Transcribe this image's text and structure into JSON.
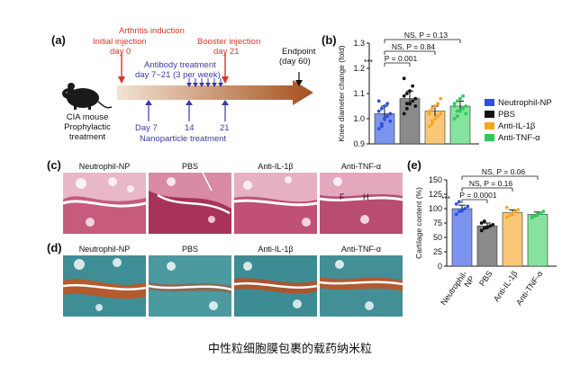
{
  "caption": "中性粒细胞膜包裹的载药纳米粒",
  "panels": {
    "a": {
      "letter": "(a)",
      "arthritis_induction": "Arthritis induction",
      "initial_injection": "Initial injection",
      "day0": "day 0",
      "booster_injection": "Booster injection",
      "day21": "day 21",
      "endpoint": "Endpoint",
      "endpoint_day": "(day 60)",
      "antibody_treatment": "Antibody treatment",
      "antibody_schedule": "day 7~21 (3 per week)",
      "mouse_lines": [
        "CIA mouse",
        "Prophylactic",
        "treatment"
      ],
      "day7": "Day 7",
      "day14": "14",
      "day21b": "21",
      "nanoparticle_treatment": "Nanoparticle treatment",
      "colors": {
        "red": "#d9342b",
        "blue": "#3a3aa5",
        "arrow_start": "#f3e3d3",
        "arrow_end": "#a5501e"
      }
    },
    "b": {
      "letter": "(b)",
      "sig_lines": [
        "NS, P = 0.13",
        "NS, P = 0.84",
        "P = 0.001"
      ],
      "stars": "***"
    },
    "c": {
      "letter": "(c)",
      "labels": [
        "Neutrophil-NP",
        "PBS",
        "Anti-IL-1β",
        "Anti-TNF-α"
      ],
      "annotations": [
        "F",
        "H"
      ]
    },
    "d": {
      "letter": "(d)",
      "labels": [
        "Neutrophil-NP",
        "PBS",
        "Anti-IL-1β",
        "Anti-TNF-α"
      ]
    },
    "e": {
      "letter": "(e)",
      "sig_lines": [
        "NS, P = 0.06",
        "NS, P = 0.16",
        "P = 0.0001"
      ],
      "stars": "***"
    }
  },
  "legend": [
    {
      "label": "Neutrophil-NP",
      "color": "#2f4fe0"
    },
    {
      "label": "PBS",
      "color": "#111111"
    },
    {
      "label": "Anti-IL-1β",
      "color": "#f5a623"
    },
    {
      "label": "Anti-TNF-α",
      "color": "#34c759"
    }
  ],
  "chart_data": [
    {
      "type": "bar",
      "panel": "b",
      "ylabel": "Knee diameter change (fold)",
      "ylim": [
        0.9,
        1.3
      ],
      "yticks": [
        "0.9",
        "1.0",
        "1.1",
        "1.2",
        "1.3"
      ],
      "categories": [
        "Neutrophil-NP",
        "PBS",
        "Anti-IL-1β",
        "Anti-TNF-α"
      ],
      "values": [
        1.02,
        1.08,
        1.03,
        1.05
      ],
      "errors": [
        0.03,
        0.03,
        0.02,
        0.02
      ],
      "colors": [
        "#7d93f0",
        "#8a8a8a",
        "#f8c877",
        "#86e39d"
      ],
      "points": [
        [
          0.96,
          0.98,
          1.0,
          1.01,
          1.02,
          1.03,
          1.04,
          1.05,
          1.06,
          0.99,
          1.07,
          0.97
        ],
        [
          1.02,
          1.04,
          1.06,
          1.07,
          1.08,
          1.09,
          1.1,
          1.11,
          1.13,
          1.05,
          1.16,
          1.06
        ],
        [
          0.97,
          0.99,
          1.0,
          1.01,
          1.02,
          1.03,
          1.04,
          1.05,
          1.06,
          1.08,
          1.02,
          0.98
        ],
        [
          1.0,
          1.01,
          1.03,
          1.04,
          1.05,
          1.06,
          1.07,
          1.08,
          1.09,
          1.02,
          1.05,
          1.03
        ]
      ]
    },
    {
      "type": "bar",
      "panel": "e",
      "ylabel": "Cartilage content (%)",
      "ylim": [
        0,
        150
      ],
      "yticks": [
        "0",
        "25",
        "50",
        "75",
        "100",
        "125",
        "150"
      ],
      "categories": [
        "Neutrophil-NP",
        "PBS",
        "Anti-IL-1β",
        "Anti-TNF-α"
      ],
      "tick_labels": [
        "Neutrophil-\nNP",
        "PBS",
        "Anti-IL-1β",
        "Anti-TNF-α"
      ],
      "values": [
        100,
        70,
        93,
        90
      ],
      "errors": [
        6,
        5,
        5,
        4
      ],
      "colors": [
        "#7d93f0",
        "#8a8a8a",
        "#f8c877",
        "#86e39d"
      ],
      "points": [
        [
          90,
          95,
          98,
          100,
          104,
          108,
          112,
          96
        ],
        [
          62,
          66,
          68,
          70,
          72,
          75,
          78,
          67
        ],
        [
          85,
          88,
          92,
          95,
          98,
          102
        ],
        [
          84,
          87,
          90,
          92,
          95,
          86
        ]
      ]
    }
  ]
}
